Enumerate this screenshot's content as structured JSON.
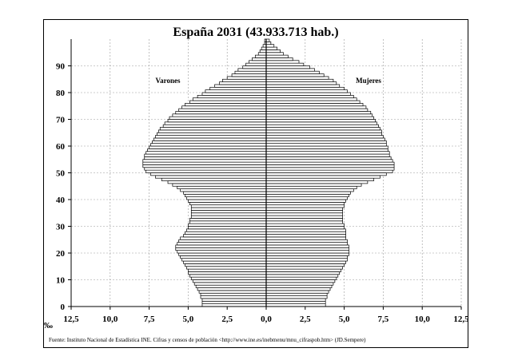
{
  "chart_data": {
    "type": "bar",
    "orientation": "horizontal-population-pyramid",
    "title": "España 2031 (43.933.713 hab.)",
    "unit_label": "‰",
    "source": "Fuente: Instituto Nacional de Estadística INE. Cifras y censos de población <http://www.ine.es/inebmenu/mnu_cifraspob.htm> (JD.Sempere)",
    "x_tick_labels": [
      "12,5",
      "10,0",
      "7,5",
      "5,0",
      "2,5",
      "0,0",
      "2,5",
      "5,0",
      "7,5",
      "10,0",
      "12,5"
    ],
    "xlim": [
      -12.5,
      12.5
    ],
    "y_ticks": [
      0,
      10,
      20,
      30,
      40,
      50,
      60,
      70,
      80,
      90
    ],
    "ylim": [
      0,
      100
    ],
    "grid": true,
    "age_step": 1,
    "series": [
      {
        "name": "Varones",
        "values": [
          4.1,
          4.1,
          4.1,
          4.2,
          4.2,
          4.3,
          4.4,
          4.5,
          4.6,
          4.7,
          4.8,
          4.9,
          5.0,
          5.0,
          5.1,
          5.2,
          5.3,
          5.4,
          5.5,
          5.6,
          5.7,
          5.8,
          5.8,
          5.7,
          5.6,
          5.5,
          5.3,
          5.2,
          5.1,
          5.0,
          5.0,
          4.9,
          4.9,
          4.8,
          4.8,
          4.8,
          4.8,
          4.8,
          4.9,
          5.0,
          5.1,
          5.2,
          5.3,
          5.5,
          5.7,
          6.0,
          6.3,
          6.7,
          7.1,
          7.4,
          7.7,
          7.8,
          7.9,
          7.9,
          7.9,
          7.8,
          7.8,
          7.7,
          7.6,
          7.5,
          7.4,
          7.3,
          7.2,
          7.1,
          7.0,
          6.9,
          6.8,
          6.6,
          6.5,
          6.3,
          6.2,
          6.0,
          5.8,
          5.6,
          5.4,
          5.2,
          4.9,
          4.7,
          4.4,
          4.1,
          3.9,
          3.6,
          3.3,
          3.0,
          2.8,
          2.5,
          2.2,
          2.0,
          1.8,
          1.5,
          1.3,
          1.1,
          0.9,
          0.7,
          0.5,
          0.4,
          0.3,
          0.2,
          0.1,
          0.1
        ]
      },
      {
        "name": "Mujeres",
        "values": [
          3.8,
          3.8,
          3.8,
          3.9,
          3.9,
          4.0,
          4.1,
          4.2,
          4.3,
          4.4,
          4.5,
          4.6,
          4.7,
          4.8,
          4.9,
          5.0,
          5.1,
          5.2,
          5.2,
          5.3,
          5.3,
          5.3,
          5.3,
          5.2,
          5.2,
          5.1,
          5.1,
          5.1,
          5.1,
          5.0,
          5.0,
          4.9,
          4.9,
          4.9,
          4.9,
          4.9,
          4.9,
          5.0,
          5.0,
          5.1,
          5.2,
          5.3,
          5.4,
          5.6,
          5.8,
          6.1,
          6.5,
          6.9,
          7.3,
          7.7,
          8.1,
          8.2,
          8.2,
          8.2,
          8.1,
          8.0,
          7.9,
          7.9,
          7.8,
          7.8,
          7.7,
          7.7,
          7.6,
          7.5,
          7.4,
          7.4,
          7.3,
          7.2,
          7.1,
          7.0,
          6.9,
          6.8,
          6.7,
          6.5,
          6.4,
          6.2,
          6.0,
          5.8,
          5.6,
          5.4,
          5.2,
          5.0,
          4.7,
          4.5,
          4.3,
          4.0,
          3.7,
          3.4,
          3.1,
          2.8,
          2.4,
          2.1,
          1.7,
          1.4,
          1.1,
          0.9,
          0.7,
          0.5,
          0.3,
          0.2
        ]
      }
    ],
    "series_label_positions": [
      "upper-left",
      "upper-right"
    ]
  }
}
